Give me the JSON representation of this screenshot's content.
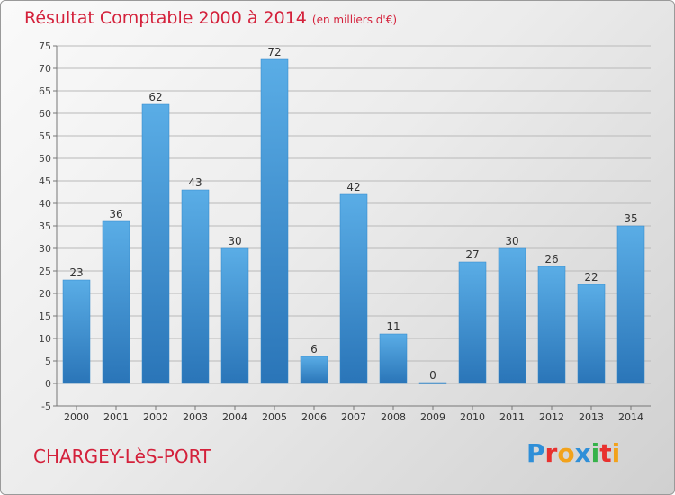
{
  "title": "Résultat Comptable 2000 à 2014",
  "subtitle": "(en milliers d'€)",
  "town": "CHARGEY-LèS-PORT",
  "logo": {
    "letters": [
      "P",
      "r",
      "o",
      "x",
      "i",
      "t",
      "i"
    ],
    "colors": [
      "#2f8fd8",
      "#e8312f",
      "#f2a21b",
      "#2f8fd8",
      "#36b24a",
      "#e8312f",
      "#f2a21b"
    ]
  },
  "chart_data": {
    "type": "bar",
    "categories": [
      "2000",
      "2001",
      "2002",
      "2003",
      "2004",
      "2005",
      "2006",
      "2007",
      "2008",
      "2009",
      "2010",
      "2011",
      "2012",
      "2013",
      "2014"
    ],
    "values": [
      23,
      36,
      62,
      43,
      30,
      72,
      6,
      42,
      11,
      0,
      27,
      30,
      26,
      22,
      35
    ],
    "ylim": [
      -5,
      75
    ],
    "yticks": [
      -5,
      0,
      5,
      10,
      15,
      20,
      25,
      30,
      35,
      40,
      45,
      50,
      55,
      60,
      65,
      70,
      75
    ],
    "grid": "horizontal",
    "bar_color": "#4a9fe0",
    "bar_color_dark": "#2a75b8"
  }
}
